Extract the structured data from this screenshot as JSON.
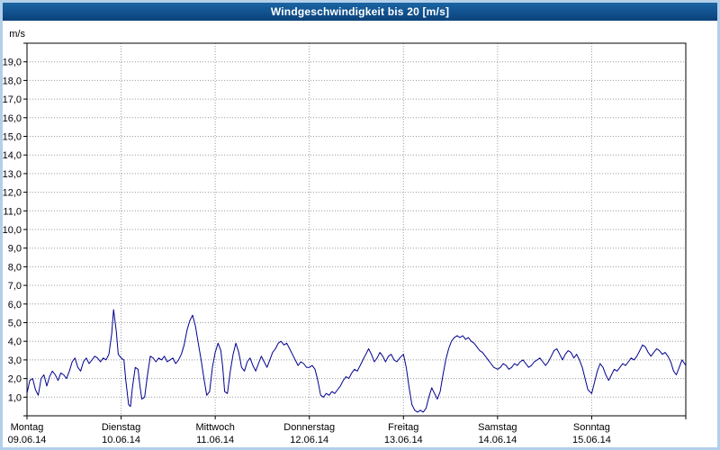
{
  "window": {
    "title": "Windgeschwindigkeit bis 20 [m/s]"
  },
  "colors": {
    "title_bar_top": "#1c64a3",
    "title_bar_bottom": "#0c4278",
    "title_text": "#ffffff",
    "frame": "#b3d0ea",
    "plot_background": "#ffffff",
    "grid": "#9a9a9a",
    "axis": "#000000",
    "series_line": "#00008f"
  },
  "chart_data": {
    "type": "line",
    "title": "Windgeschwindigkeit bis 20 [m/s]",
    "xlabel": "",
    "ylabel": "m/s",
    "ylim": [
      0,
      20
    ],
    "xlim_days": [
      0,
      7
    ],
    "grid": true,
    "y_tick_step": 1.0,
    "y_tick_labels": [
      "1,0",
      "2,0",
      "3,0",
      "4,0",
      "5,0",
      "6,0",
      "7,0",
      "8,0",
      "9,0",
      "10,0",
      "11,0",
      "12,0",
      "13,0",
      "14,0",
      "15,0",
      "16,0",
      "17,0",
      "18,0",
      "19,0"
    ],
    "x_days": [
      {
        "name": "Montag",
        "date": "09.06.14"
      },
      {
        "name": "Dienstag",
        "date": "10.06.14"
      },
      {
        "name": "Mittwoch",
        "date": "11.06.14"
      },
      {
        "name": "Donnerstag",
        "date": "12.06.14"
      },
      {
        "name": "Freitag",
        "date": "13.06.14"
      },
      {
        "name": "Samstag",
        "date": "14.06.14"
      },
      {
        "name": "Sonntag",
        "date": "15.06.14"
      }
    ],
    "series": [
      {
        "name": "Windgeschwindigkeit",
        "color": "#00008f",
        "points": [
          [
            0.0,
            1.2
          ],
          [
            0.03,
            1.9
          ],
          [
            0.06,
            2.0
          ],
          [
            0.09,
            1.4
          ],
          [
            0.12,
            1.1
          ],
          [
            0.15,
            2.0
          ],
          [
            0.18,
            2.2
          ],
          [
            0.21,
            1.6
          ],
          [
            0.24,
            2.1
          ],
          [
            0.27,
            2.4
          ],
          [
            0.3,
            2.2
          ],
          [
            0.33,
            1.9
          ],
          [
            0.36,
            2.3
          ],
          [
            0.39,
            2.2
          ],
          [
            0.42,
            2.0
          ],
          [
            0.45,
            2.4
          ],
          [
            0.48,
            2.9
          ],
          [
            0.51,
            3.1
          ],
          [
            0.54,
            2.6
          ],
          [
            0.57,
            2.4
          ],
          [
            0.6,
            2.9
          ],
          [
            0.63,
            3.1
          ],
          [
            0.66,
            2.8
          ],
          [
            0.69,
            3.0
          ],
          [
            0.72,
            3.2
          ],
          [
            0.75,
            3.1
          ],
          [
            0.78,
            2.9
          ],
          [
            0.81,
            3.1
          ],
          [
            0.84,
            3.0
          ],
          [
            0.87,
            3.3
          ],
          [
            0.9,
            4.4
          ],
          [
            0.92,
            5.7
          ],
          [
            0.95,
            4.5
          ],
          [
            0.97,
            3.3
          ],
          [
            1.0,
            3.1
          ],
          [
            1.03,
            3.0
          ],
          [
            1.05,
            1.9
          ],
          [
            1.08,
            0.6
          ],
          [
            1.1,
            0.5
          ],
          [
            1.12,
            1.5
          ],
          [
            1.15,
            2.6
          ],
          [
            1.18,
            2.5
          ],
          [
            1.2,
            1.6
          ],
          [
            1.22,
            0.9
          ],
          [
            1.25,
            1.0
          ],
          [
            1.28,
            2.2
          ],
          [
            1.31,
            3.2
          ],
          [
            1.34,
            3.1
          ],
          [
            1.37,
            2.9
          ],
          [
            1.4,
            3.1
          ],
          [
            1.43,
            3.0
          ],
          [
            1.46,
            3.2
          ],
          [
            1.49,
            2.9
          ],
          [
            1.52,
            3.0
          ],
          [
            1.55,
            3.1
          ],
          [
            1.58,
            2.8
          ],
          [
            1.61,
            3.0
          ],
          [
            1.64,
            3.3
          ],
          [
            1.67,
            3.8
          ],
          [
            1.7,
            4.6
          ],
          [
            1.73,
            5.1
          ],
          [
            1.76,
            5.4
          ],
          [
            1.79,
            4.8
          ],
          [
            1.82,
            3.9
          ],
          [
            1.85,
            3.0
          ],
          [
            1.88,
            2.0
          ],
          [
            1.91,
            1.1
          ],
          [
            1.94,
            1.3
          ],
          [
            1.97,
            2.6
          ],
          [
            2.0,
            3.4
          ],
          [
            2.03,
            3.9
          ],
          [
            2.06,
            3.5
          ],
          [
            2.08,
            2.6
          ],
          [
            2.1,
            1.3
          ],
          [
            2.13,
            1.2
          ],
          [
            2.16,
            2.4
          ],
          [
            2.19,
            3.3
          ],
          [
            2.22,
            3.9
          ],
          [
            2.25,
            3.4
          ],
          [
            2.28,
            2.6
          ],
          [
            2.31,
            2.4
          ],
          [
            2.34,
            2.9
          ],
          [
            2.37,
            3.1
          ],
          [
            2.4,
            2.7
          ],
          [
            2.43,
            2.4
          ],
          [
            2.46,
            2.8
          ],
          [
            2.49,
            3.2
          ],
          [
            2.52,
            2.9
          ],
          [
            2.55,
            2.6
          ],
          [
            2.58,
            3.0
          ],
          [
            2.61,
            3.4
          ],
          [
            2.64,
            3.6
          ],
          [
            2.67,
            3.9
          ],
          [
            2.7,
            4.0
          ],
          [
            2.73,
            3.8
          ],
          [
            2.76,
            3.9
          ],
          [
            2.79,
            3.6
          ],
          [
            2.82,
            3.3
          ],
          [
            2.85,
            3.0
          ],
          [
            2.88,
            2.7
          ],
          [
            2.91,
            2.9
          ],
          [
            2.94,
            2.8
          ],
          [
            2.97,
            2.6
          ],
          [
            3.0,
            2.6
          ],
          [
            3.03,
            2.7
          ],
          [
            3.06,
            2.5
          ],
          [
            3.09,
            1.9
          ],
          [
            3.12,
            1.1
          ],
          [
            3.15,
            1.0
          ],
          [
            3.18,
            1.2
          ],
          [
            3.21,
            1.1
          ],
          [
            3.24,
            1.3
          ],
          [
            3.27,
            1.2
          ],
          [
            3.3,
            1.4
          ],
          [
            3.33,
            1.6
          ],
          [
            3.36,
            1.9
          ],
          [
            3.39,
            2.1
          ],
          [
            3.42,
            2.0
          ],
          [
            3.45,
            2.3
          ],
          [
            3.48,
            2.5
          ],
          [
            3.51,
            2.4
          ],
          [
            3.54,
            2.7
          ],
          [
            3.57,
            3.0
          ],
          [
            3.6,
            3.3
          ],
          [
            3.63,
            3.6
          ],
          [
            3.66,
            3.3
          ],
          [
            3.69,
            2.9
          ],
          [
            3.72,
            3.1
          ],
          [
            3.75,
            3.4
          ],
          [
            3.78,
            3.2
          ],
          [
            3.81,
            2.9
          ],
          [
            3.84,
            3.2
          ],
          [
            3.87,
            3.3
          ],
          [
            3.9,
            3.0
          ],
          [
            3.93,
            2.9
          ],
          [
            3.96,
            3.1
          ],
          [
            4.0,
            3.3
          ],
          [
            4.03,
            2.6
          ],
          [
            4.06,
            1.5
          ],
          [
            4.09,
            0.6
          ],
          [
            4.12,
            0.3
          ],
          [
            4.15,
            0.2
          ],
          [
            4.18,
            0.3
          ],
          [
            4.21,
            0.2
          ],
          [
            4.24,
            0.4
          ],
          [
            4.27,
            1.0
          ],
          [
            4.3,
            1.5
          ],
          [
            4.33,
            1.2
          ],
          [
            4.36,
            0.9
          ],
          [
            4.39,
            1.3
          ],
          [
            4.42,
            2.2
          ],
          [
            4.45,
            3.0
          ],
          [
            4.48,
            3.6
          ],
          [
            4.51,
            4.0
          ],
          [
            4.54,
            4.2
          ],
          [
            4.57,
            4.3
          ],
          [
            4.6,
            4.2
          ],
          [
            4.63,
            4.3
          ],
          [
            4.66,
            4.1
          ],
          [
            4.69,
            4.2
          ],
          [
            4.72,
            4.0
          ],
          [
            4.75,
            3.9
          ],
          [
            4.78,
            3.7
          ],
          [
            4.81,
            3.5
          ],
          [
            4.84,
            3.4
          ],
          [
            4.87,
            3.2
          ],
          [
            4.9,
            3.0
          ],
          [
            4.93,
            2.8
          ],
          [
            4.96,
            2.6
          ],
          [
            5.0,
            2.5
          ],
          [
            5.03,
            2.6
          ],
          [
            5.06,
            2.8
          ],
          [
            5.09,
            2.7
          ],
          [
            5.12,
            2.5
          ],
          [
            5.15,
            2.6
          ],
          [
            5.18,
            2.8
          ],
          [
            5.21,
            2.7
          ],
          [
            5.24,
            2.9
          ],
          [
            5.27,
            3.0
          ],
          [
            5.3,
            2.8
          ],
          [
            5.33,
            2.6
          ],
          [
            5.36,
            2.7
          ],
          [
            5.39,
            2.9
          ],
          [
            5.42,
            3.0
          ],
          [
            5.45,
            3.1
          ],
          [
            5.48,
            2.9
          ],
          [
            5.51,
            2.7
          ],
          [
            5.54,
            2.9
          ],
          [
            5.57,
            3.2
          ],
          [
            5.6,
            3.5
          ],
          [
            5.63,
            3.6
          ],
          [
            5.66,
            3.3
          ],
          [
            5.69,
            3.0
          ],
          [
            5.72,
            3.3
          ],
          [
            5.75,
            3.5
          ],
          [
            5.78,
            3.4
          ],
          [
            5.81,
            3.1
          ],
          [
            5.84,
            3.3
          ],
          [
            5.87,
            3.0
          ],
          [
            5.9,
            2.6
          ],
          [
            5.93,
            2.0
          ],
          [
            5.96,
            1.4
          ],
          [
            6.0,
            1.2
          ],
          [
            6.03,
            1.8
          ],
          [
            6.06,
            2.4
          ],
          [
            6.09,
            2.8
          ],
          [
            6.12,
            2.6
          ],
          [
            6.15,
            2.2
          ],
          [
            6.18,
            1.9
          ],
          [
            6.21,
            2.2
          ],
          [
            6.24,
            2.5
          ],
          [
            6.27,
            2.4
          ],
          [
            6.3,
            2.6
          ],
          [
            6.33,
            2.8
          ],
          [
            6.36,
            2.7
          ],
          [
            6.39,
            2.9
          ],
          [
            6.42,
            3.1
          ],
          [
            6.45,
            3.0
          ],
          [
            6.48,
            3.2
          ],
          [
            6.51,
            3.5
          ],
          [
            6.54,
            3.8
          ],
          [
            6.57,
            3.7
          ],
          [
            6.6,
            3.4
          ],
          [
            6.63,
            3.2
          ],
          [
            6.66,
            3.4
          ],
          [
            6.69,
            3.6
          ],
          [
            6.72,
            3.5
          ],
          [
            6.75,
            3.3
          ],
          [
            6.78,
            3.4
          ],
          [
            6.81,
            3.2
          ],
          [
            6.84,
            2.9
          ],
          [
            6.87,
            2.4
          ],
          [
            6.9,
            2.2
          ],
          [
            6.93,
            2.6
          ],
          [
            6.96,
            3.0
          ],
          [
            7.0,
            2.7
          ]
        ]
      }
    ]
  }
}
